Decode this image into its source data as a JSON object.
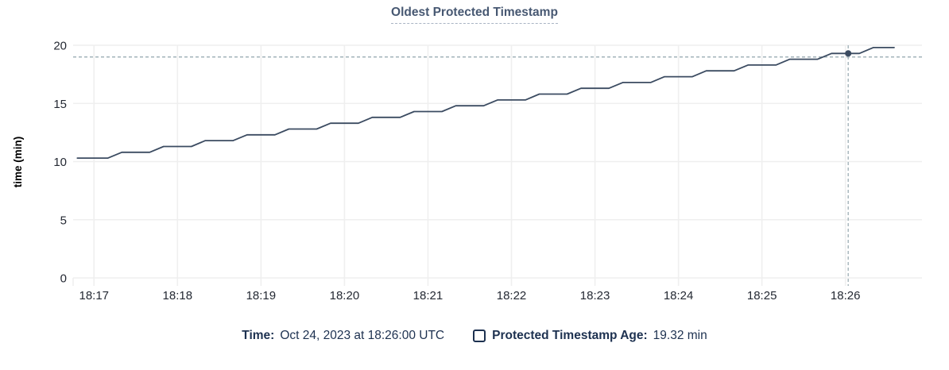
{
  "chart_data": {
    "type": "line",
    "title": "Oldest Protected Timestamp",
    "ylabel": "time (min)",
    "xlabel": "",
    "x_ticks": [
      "18:17",
      "18:18",
      "18:19",
      "18:20",
      "18:21",
      "18:22",
      "18:23",
      "18:24",
      "18:25",
      "18:26"
    ],
    "y_ticks": [
      0,
      5,
      10,
      15,
      20
    ],
    "ylim": [
      0,
      20
    ],
    "x_range": [
      "18:16:45",
      "18:26:55"
    ],
    "grid": true,
    "legend_position": "bottom",
    "series": [
      {
        "name": "Protected Timestamp Age",
        "unit": "min",
        "points": [
          [
            "18:16:48",
            10.3
          ],
          [
            "18:17:10",
            10.3
          ],
          [
            "18:17:20",
            10.8
          ],
          [
            "18:17:40",
            10.8
          ],
          [
            "18:17:50",
            11.3
          ],
          [
            "18:18:10",
            11.3
          ],
          [
            "18:18:20",
            11.8
          ],
          [
            "18:18:40",
            11.8
          ],
          [
            "18:18:50",
            12.3
          ],
          [
            "18:19:10",
            12.3
          ],
          [
            "18:19:20",
            12.8
          ],
          [
            "18:19:40",
            12.8
          ],
          [
            "18:19:50",
            13.3
          ],
          [
            "18:20:10",
            13.3
          ],
          [
            "18:20:20",
            13.8
          ],
          [
            "18:20:40",
            13.8
          ],
          [
            "18:20:50",
            14.3
          ],
          [
            "18:21:10",
            14.3
          ],
          [
            "18:21:20",
            14.8
          ],
          [
            "18:21:40",
            14.8
          ],
          [
            "18:21:50",
            15.3
          ],
          [
            "18:22:10",
            15.3
          ],
          [
            "18:22:20",
            15.8
          ],
          [
            "18:22:40",
            15.8
          ],
          [
            "18:22:50",
            16.3
          ],
          [
            "18:23:10",
            16.3
          ],
          [
            "18:23:20",
            16.8
          ],
          [
            "18:23:40",
            16.8
          ],
          [
            "18:23:50",
            17.3
          ],
          [
            "18:24:10",
            17.3
          ],
          [
            "18:24:20",
            17.8
          ],
          [
            "18:24:40",
            17.8
          ],
          [
            "18:24:50",
            18.3
          ],
          [
            "18:25:10",
            18.3
          ],
          [
            "18:25:20",
            18.8
          ],
          [
            "18:25:40",
            18.8
          ],
          [
            "18:25:50",
            19.3
          ],
          [
            "18:26:10",
            19.3
          ],
          [
            "18:26:20",
            19.8
          ],
          [
            "18:26:35",
            19.8
          ]
        ]
      }
    ],
    "crosshair": {
      "time": "18:26:02",
      "value": 19.32
    }
  },
  "legend": {
    "time_label": "Time:",
    "time_value": "Oct 24, 2023 at 18:26:00 UTC",
    "series_label": "Protected Timestamp Age:",
    "series_value": "19.32 min"
  },
  "colors": {
    "line": "#3b4b61",
    "point": "#3b4b61",
    "grid": "#efefef",
    "crosshair": "#a3b3ba",
    "title": "#475872",
    "legend_text": "#1d3150",
    "axis_text": "#242933"
  }
}
